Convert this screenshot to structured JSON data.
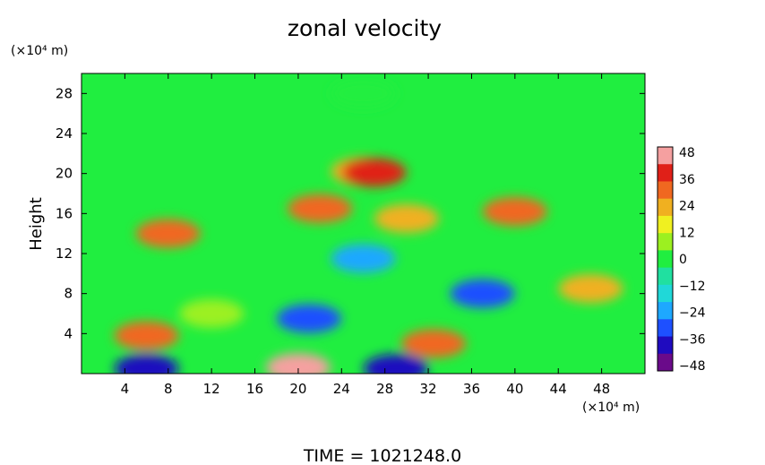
{
  "chart_data": {
    "type": "heatmap",
    "title": "zonal velocity",
    "xlabel": "",
    "ylabel": "Height",
    "x_unit_label": "(×10⁴ m)",
    "y_unit_label": "(×10⁴ m)",
    "xlim": [
      0,
      52
    ],
    "ylim": [
      0,
      30
    ],
    "xticks": [
      "4",
      "8",
      "12",
      "16",
      "20",
      "24",
      "28",
      "32",
      "36",
      "40",
      "44",
      "48"
    ],
    "yticks": [
      "4",
      "8",
      "12",
      "16",
      "20",
      "24",
      "28"
    ],
    "colorbar": {
      "ticks": [
        "48",
        "36",
        "24",
        "12",
        "0",
        "−12",
        "−24",
        "−36",
        "−48"
      ],
      "range": [
        -48,
        48
      ],
      "colors": [
        "#6a0a8a",
        "#1f0bbf",
        "#1e50ff",
        "#1ea8ff",
        "#20d8d8",
        "#20e0a0",
        "#20ee40",
        "#9cf020",
        "#f0f020",
        "#f0b020",
        "#f06820",
        "#e02018",
        "#f5a0a0"
      ]
    },
    "field_features": [
      {
        "x": 26,
        "y": 28,
        "value": 0
      },
      {
        "x": 26,
        "y": 20.2,
        "value": 22
      },
      {
        "x": 27,
        "y": 20.1,
        "value": 42
      },
      {
        "x": 8,
        "y": 14,
        "value": 28
      },
      {
        "x": 22,
        "y": 16.5,
        "value": 28
      },
      {
        "x": 30,
        "y": 15.5,
        "value": 26
      },
      {
        "x": 40,
        "y": 16.2,
        "value": 28
      },
      {
        "x": 26,
        "y": 11.5,
        "value": -22
      },
      {
        "x": 21,
        "y": 5.5,
        "value": -36
      },
      {
        "x": 37,
        "y": 8,
        "value": -30
      },
      {
        "x": 47,
        "y": 8.5,
        "value": 26
      },
      {
        "x": 6,
        "y": 3.8,
        "value": 30
      },
      {
        "x": 20,
        "y": 0.6,
        "value": 46
      },
      {
        "x": 6,
        "y": 0.5,
        "value": -44
      },
      {
        "x": 29,
        "y": 0.5,
        "value": -40
      },
      {
        "x": 32.5,
        "y": 3,
        "value": 30
      },
      {
        "x": 12,
        "y": 6,
        "value": 10
      }
    ]
  },
  "footer": {
    "time_label": "TIME  =  1021248.0"
  }
}
